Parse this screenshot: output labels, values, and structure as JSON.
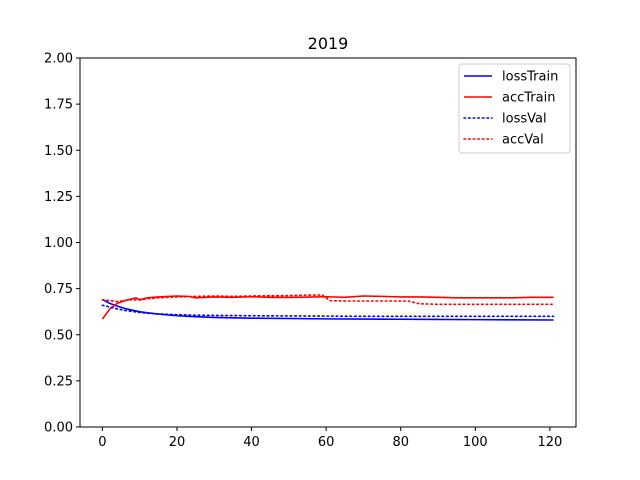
{
  "chart_data": {
    "type": "line",
    "title": "2019",
    "xlabel": "",
    "ylabel": "",
    "xlim": [
      -6,
      127
    ],
    "ylim": [
      0,
      2
    ],
    "xticks": [
      0,
      20,
      40,
      60,
      80,
      100,
      120
    ],
    "yticks": [
      0.0,
      0.25,
      0.5,
      0.75,
      1.0,
      1.25,
      1.5,
      1.75,
      2.0
    ],
    "ytick_labels": [
      "0.00",
      "0.25",
      "0.50",
      "0.75",
      "1.00",
      "1.25",
      "1.50",
      "1.75",
      "2.00"
    ],
    "grid": false,
    "legend_position": "top-right",
    "series": [
      {
        "name": "lossTrain",
        "color": "#0000ff",
        "style": "solid",
        "x": [
          0,
          2,
          4,
          6,
          8,
          10,
          12,
          15,
          20,
          25,
          30,
          40,
          50,
          60,
          70,
          80,
          90,
          100,
          110,
          121
        ],
        "y": [
          0.69,
          0.67,
          0.655,
          0.643,
          0.633,
          0.625,
          0.619,
          0.612,
          0.603,
          0.598,
          0.594,
          0.59,
          0.588,
          0.586,
          0.585,
          0.584,
          0.583,
          0.582,
          0.581,
          0.58
        ]
      },
      {
        "name": "accTrain",
        "color": "#ff0000",
        "style": "solid",
        "x": [
          0,
          2,
          4,
          6,
          8,
          9,
          10,
          12,
          15,
          18,
          20,
          23,
          25,
          30,
          35,
          40,
          45,
          50,
          55,
          60,
          65,
          70,
          75,
          80,
          85,
          90,
          95,
          100,
          105,
          110,
          115,
          121
        ],
        "y": [
          0.585,
          0.64,
          0.67,
          0.685,
          0.695,
          0.7,
          0.69,
          0.7,
          0.705,
          0.708,
          0.71,
          0.708,
          0.7,
          0.705,
          0.703,
          0.706,
          0.703,
          0.702,
          0.704,
          0.706,
          0.703,
          0.71,
          0.708,
          0.705,
          0.705,
          0.703,
          0.7,
          0.7,
          0.7,
          0.7,
          0.703,
          0.703
        ]
      },
      {
        "name": "lossVal",
        "color": "#0000ff",
        "style": "dotted",
        "x": [
          0,
          2,
          4,
          6,
          8,
          10,
          12,
          15,
          20,
          25,
          30,
          40,
          50,
          60,
          70,
          80,
          90,
          100,
          110,
          121
        ],
        "y": [
          0.66,
          0.65,
          0.64,
          0.632,
          0.626,
          0.621,
          0.617,
          0.613,
          0.609,
          0.606,
          0.605,
          0.603,
          0.602,
          0.601,
          0.6,
          0.6,
          0.6,
          0.6,
          0.6,
          0.6
        ]
      },
      {
        "name": "accVal",
        "color": "#ff0000",
        "style": "dotted",
        "x": [
          0,
          2,
          4,
          6,
          8,
          10,
          12,
          15,
          20,
          25,
          30,
          35,
          40,
          45,
          50,
          55,
          59,
          61,
          65,
          70,
          75,
          80,
          82,
          85,
          90,
          95,
          100,
          110,
          121
        ],
        "y": [
          0.69,
          0.685,
          0.68,
          0.685,
          0.69,
          0.688,
          0.695,
          0.7,
          0.705,
          0.708,
          0.71,
          0.708,
          0.71,
          0.712,
          0.712,
          0.715,
          0.715,
          0.685,
          0.683,
          0.683,
          0.683,
          0.683,
          0.683,
          0.668,
          0.665,
          0.665,
          0.665,
          0.665,
          0.665
        ]
      }
    ]
  }
}
